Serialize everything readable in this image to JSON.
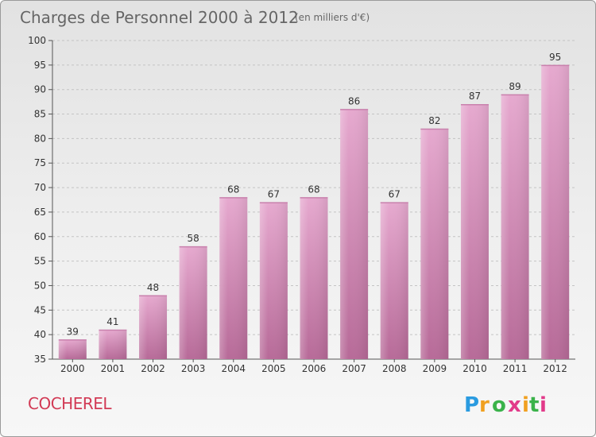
{
  "chart_data": {
    "type": "bar",
    "title": "Charges de Personnel 2000 à 2012",
    "subtitle": "(en milliers d'€)",
    "categories": [
      "2000",
      "2001",
      "2002",
      "2003",
      "2004",
      "2005",
      "2006",
      "2007",
      "2008",
      "2009",
      "2010",
      "2011",
      "2012"
    ],
    "values": [
      39,
      41,
      48,
      58,
      68,
      67,
      68,
      86,
      67,
      82,
      87,
      89,
      95
    ],
    "ylim": [
      35,
      100
    ],
    "yticks": [
      "35",
      "40",
      "45",
      "50",
      "55",
      "60",
      "65",
      "70",
      "75",
      "80",
      "85",
      "90",
      "95",
      "100"
    ],
    "grid": "horizontal dashed",
    "bar_color": "#d07aa8"
  },
  "footer": {
    "commune": "COCHEREL",
    "logo_letters": [
      "P",
      "r",
      "o",
      "x",
      "i",
      "t",
      "i"
    ],
    "logo_colors": [
      "#2a9be0",
      "#f0a020",
      "#3ab24a",
      "#e23a8a",
      "#f0a020",
      "#3ab24a",
      "#e23a8a"
    ]
  }
}
